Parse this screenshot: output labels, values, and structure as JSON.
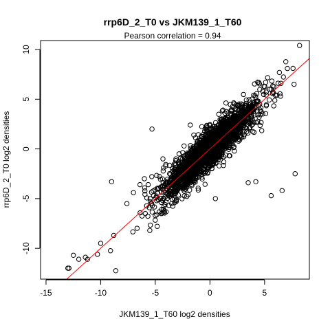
{
  "chart_data": {
    "type": "scatter",
    "title": "rrp6D_2_T0 vs JKM139_1_T60",
    "subtitle": "Pearson correlation =  0.94",
    "xlabel": "JKM139_1_T60 log2 densities",
    "ylabel": "rrp6D_2_T0 log2 densities",
    "xlim": [
      -15.5,
      9.1
    ],
    "ylim": [
      -13.1,
      10.9
    ],
    "x_ticks": [
      -15,
      -10,
      -5,
      0,
      5
    ],
    "y_ticks": [
      -10,
      -5,
      0,
      5,
      10
    ],
    "x_tick_labels": [
      "-15",
      "-10",
      "-5",
      "0",
      "5"
    ],
    "y_tick_labels": [
      "-10",
      "-5",
      "0",
      "5",
      "10"
    ],
    "grid": false,
    "legend": "none",
    "point_marker": "open-circle",
    "point_color": "#000000",
    "fit_line": {
      "slope": 1.0,
      "intercept": 0.0,
      "color": "#ff0000"
    },
    "cloud": {
      "n_points": 2200,
      "slope": 1.0,
      "x_range": [
        -13,
        8.2
      ],
      "x_center": 0.0,
      "x_spread": 2.2,
      "y_spread": 0.95
    },
    "outliers": {
      "x": [
        8.2,
        7.6,
        6.5,
        6.0,
        5.1,
        4.0,
        7.7,
        -12.9,
        -12.0,
        -11.4,
        -10.3,
        -7.6,
        -5.5,
        -9.0,
        -6.0,
        4.2,
        3.5,
        5.6,
        6.6,
        7.8,
        0.5,
        -1.0,
        -2.0,
        -3.5,
        -8.8,
        -11.2,
        -10.0,
        -6.4,
        -4.3,
        2.8,
        -1.8,
        1.2,
        -5.3,
        -7.0,
        3.0,
        -13.0,
        -12.5
      ],
      "y": [
        10.4,
        8.1,
        6.6,
        5.4,
        6.7,
        5.4,
        6.5,
        -12.0,
        -11.1,
        -10.9,
        -10.6,
        -5.5,
        -8.2,
        -3.3,
        -3.0,
        -3.3,
        -3.4,
        -4.7,
        -4.2,
        -2.5,
        -5.0,
        -2.8,
        -4.6,
        -5.5,
        -8.7,
        -11.1,
        -9.5,
        -3.6,
        -1.0,
        1.3,
        2.4,
        3.9,
        2.0,
        -4.4,
        4.4,
        -12.0,
        -10.7
      ]
    }
  }
}
